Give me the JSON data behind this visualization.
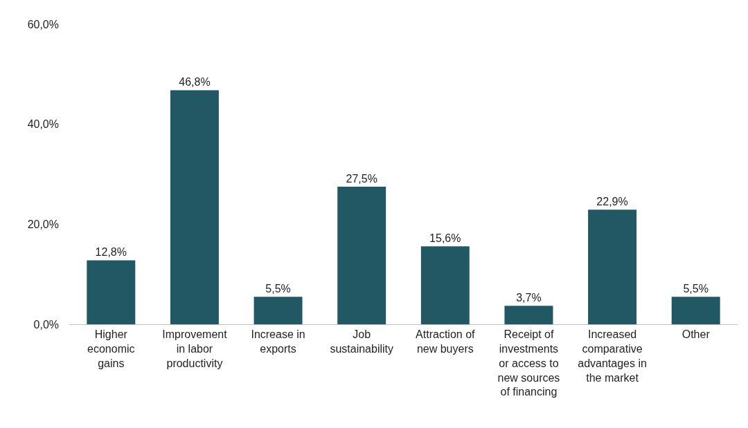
{
  "chart_data": {
    "type": "bar",
    "categories": [
      "Higher economic gains",
      "Improvement in labor productivity",
      "Increase in exports",
      "Job sustainability",
      "Attraction of new buyers",
      "Receipt of investments or access to new sources of financing",
      "Increased comparative advantages in the market",
      "Other"
    ],
    "values": [
      12.8,
      46.8,
      5.5,
      27.5,
      15.6,
      3.7,
      22.9,
      5.5
    ],
    "value_labels": [
      "12,8%",
      "46,8%",
      "5,5%",
      "27,5%",
      "15,6%",
      "3,7%",
      "22,9%",
      "5,5%"
    ],
    "color": "#215864",
    "ylim": [
      0,
      60
    ],
    "yticks": [
      {
        "value": 0,
        "label": "0,0%"
      },
      {
        "value": 20,
        "label": "20,0%"
      },
      {
        "value": 40,
        "label": "40,0%"
      },
      {
        "value": 60,
        "label": "60,0%"
      }
    ],
    "grid": false
  }
}
